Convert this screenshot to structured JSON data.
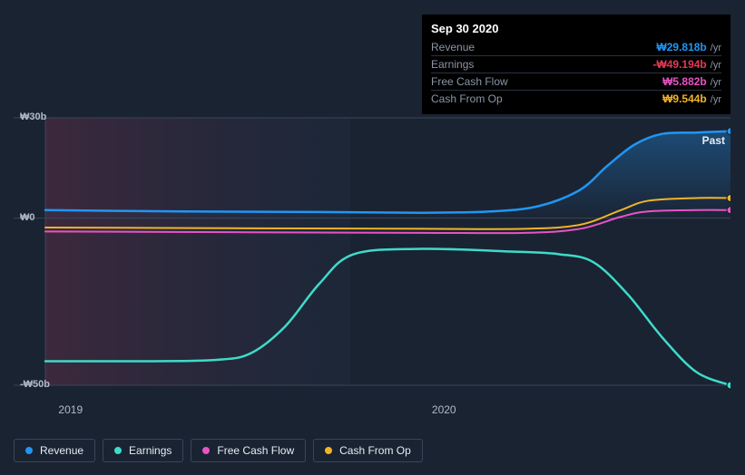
{
  "tooltip": {
    "date": "Sep 30 2020",
    "rows": [
      {
        "label": "Revenue",
        "value": "₩29.818b",
        "unit": "/yr",
        "color": "#2196f3"
      },
      {
        "label": "Earnings",
        "value": "-₩49.194b",
        "unit": "/yr",
        "color": "#e53955"
      },
      {
        "label": "Free Cash Flow",
        "value": "₩5.882b",
        "unit": "/yr",
        "color": "#e754c4"
      },
      {
        "label": "Cash From Op",
        "value": "₩9.544b",
        "unit": "/yr",
        "color": "#f0b429"
      }
    ]
  },
  "chart": {
    "type": "line",
    "background_color": "#1a2332",
    "left_shade_gradient": [
      "#5a2d45",
      "#23334a"
    ],
    "grid_color": "#2d3748",
    "axis_color": "#3a4558",
    "ylabels": [
      {
        "text": "₩30b",
        "y": 0.0
      },
      {
        "text": "₩0",
        "y": 0.375
      },
      {
        "text": "-₩50b",
        "y": 1.0
      }
    ],
    "ygrid": [
      0.0,
      0.375,
      1.0
    ],
    "xlabels": [
      {
        "text": "2019",
        "x": 0.035
      },
      {
        "text": "2020",
        "x": 0.58
      }
    ],
    "past_label": "Past",
    "series": [
      {
        "name": "Revenue",
        "color": "#2196f3",
        "width": 2.5,
        "area_fill": "#2196f3",
        "area_opacity": 0.25,
        "points": [
          [
            0.0,
            0.345
          ],
          [
            0.2,
            0.35
          ],
          [
            0.4,
            0.352
          ],
          [
            0.55,
            0.355
          ],
          [
            0.65,
            0.35
          ],
          [
            0.72,
            0.33
          ],
          [
            0.78,
            0.27
          ],
          [
            0.82,
            0.18
          ],
          [
            0.86,
            0.1
          ],
          [
            0.9,
            0.06
          ],
          [
            0.95,
            0.055
          ],
          [
            1.0,
            0.05
          ]
        ]
      },
      {
        "name": "Earnings",
        "color": "#3edbc9",
        "width": 2.5,
        "points": [
          [
            0.0,
            0.91
          ],
          [
            0.15,
            0.91
          ],
          [
            0.25,
            0.905
          ],
          [
            0.3,
            0.88
          ],
          [
            0.35,
            0.78
          ],
          [
            0.4,
            0.62
          ],
          [
            0.45,
            0.51
          ],
          [
            0.55,
            0.49
          ],
          [
            0.68,
            0.5
          ],
          [
            0.75,
            0.51
          ],
          [
            0.8,
            0.54
          ],
          [
            0.85,
            0.66
          ],
          [
            0.9,
            0.82
          ],
          [
            0.95,
            0.95
          ],
          [
            1.0,
            1.0
          ]
        ]
      },
      {
        "name": "Free Cash Flow",
        "color": "#e754c4",
        "width": 2,
        "points": [
          [
            0.0,
            0.425
          ],
          [
            0.3,
            0.428
          ],
          [
            0.55,
            0.43
          ],
          [
            0.7,
            0.43
          ],
          [
            0.78,
            0.415
          ],
          [
            0.84,
            0.37
          ],
          [
            0.88,
            0.35
          ],
          [
            0.95,
            0.345
          ],
          [
            1.0,
            0.345
          ]
        ]
      },
      {
        "name": "Cash From Op",
        "color": "#f0b429",
        "width": 2,
        "points": [
          [
            0.0,
            0.41
          ],
          [
            0.3,
            0.413
          ],
          [
            0.55,
            0.415
          ],
          [
            0.7,
            0.415
          ],
          [
            0.78,
            0.4
          ],
          [
            0.84,
            0.345
          ],
          [
            0.88,
            0.31
          ],
          [
            0.95,
            0.3
          ],
          [
            1.0,
            0.3
          ]
        ]
      }
    ],
    "end_dots": [
      {
        "color": "#2196f3",
        "y": 0.05
      },
      {
        "color": "#f0b429",
        "y": 0.3
      },
      {
        "color": "#e754c4",
        "y": 0.345
      },
      {
        "color": "#3edbc9",
        "y": 1.0
      }
    ],
    "left_shade_x_end": 0.445
  },
  "legend": [
    {
      "label": "Revenue",
      "color": "#2196f3"
    },
    {
      "label": "Earnings",
      "color": "#3edbc9"
    },
    {
      "label": "Free Cash Flow",
      "color": "#e754c4"
    },
    {
      "label": "Cash From Op",
      "color": "#f0b429"
    }
  ]
}
